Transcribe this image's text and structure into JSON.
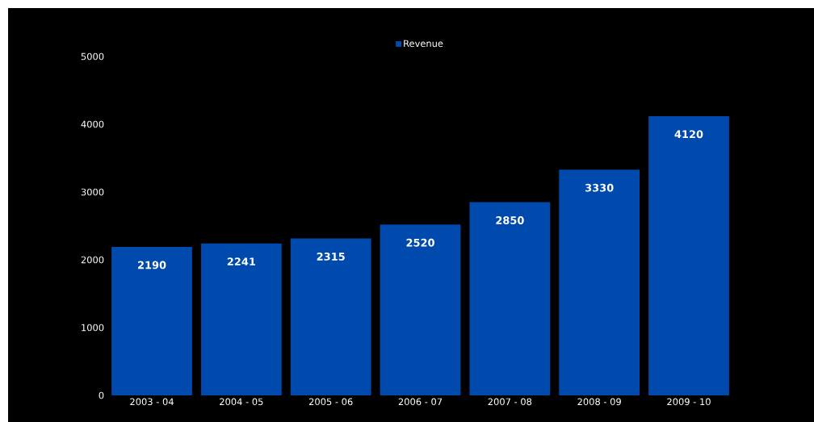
{
  "chart_data": {
    "type": "bar",
    "categories": [
      "2003 - 04",
      "2004 - 05",
      "2005 - 06",
      "2006 - 07",
      "2007 - 08",
      "2008 - 09",
      "2009 - 10"
    ],
    "series": [
      {
        "name": "Revenue",
        "color": "#004aad",
        "values": [
          2190,
          2241,
          2315,
          2520,
          2850,
          3330,
          4120
        ]
      }
    ],
    "ylim": [
      0,
      5000
    ],
    "yticks": [
      0,
      1000,
      2000,
      3000,
      4000,
      5000
    ],
    "data_labels": true,
    "legend": "top",
    "grid": false
  }
}
